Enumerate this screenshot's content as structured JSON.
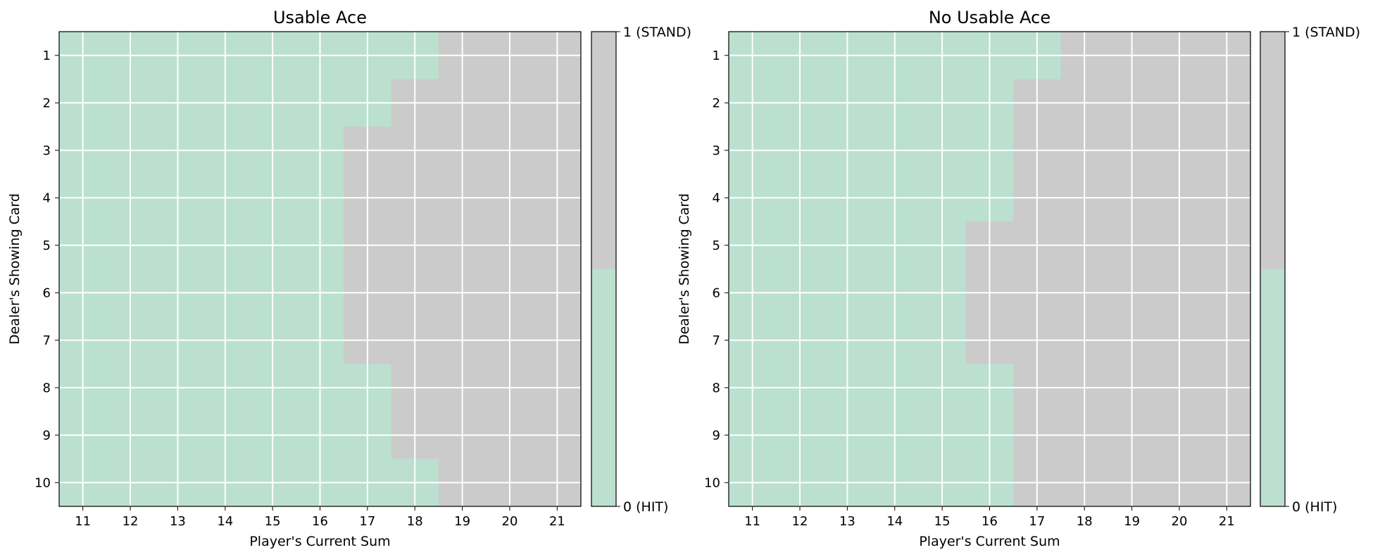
{
  "colors": {
    "hit": "#bbe0cf",
    "stand": "#cbcbcb",
    "grid": "#ffffff",
    "frame": "#000000"
  },
  "chart_data": [
    {
      "type": "heatmap",
      "title": "Usable Ace",
      "xlabel": "Player's Current Sum",
      "ylabel": "Dealer's Showing Card",
      "x": [
        11,
        12,
        13,
        14,
        15,
        16,
        17,
        18,
        19,
        20,
        21
      ],
      "y": [
        1,
        2,
        3,
        4,
        5,
        6,
        7,
        8,
        9,
        10
      ],
      "values": [
        [
          0,
          0,
          0,
          0,
          0,
          0,
          0,
          0,
          1,
          1,
          1
        ],
        [
          0,
          0,
          0,
          0,
          0,
          0,
          0,
          1,
          1,
          1,
          1
        ],
        [
          0,
          0,
          0,
          0,
          0,
          0,
          1,
          1,
          1,
          1,
          1
        ],
        [
          0,
          0,
          0,
          0,
          0,
          0,
          1,
          1,
          1,
          1,
          1
        ],
        [
          0,
          0,
          0,
          0,
          0,
          0,
          1,
          1,
          1,
          1,
          1
        ],
        [
          0,
          0,
          0,
          0,
          0,
          0,
          1,
          1,
          1,
          1,
          1
        ],
        [
          0,
          0,
          0,
          0,
          0,
          0,
          1,
          1,
          1,
          1,
          1
        ],
        [
          0,
          0,
          0,
          0,
          0,
          0,
          0,
          1,
          1,
          1,
          1
        ],
        [
          0,
          0,
          0,
          0,
          0,
          0,
          0,
          1,
          1,
          1,
          1
        ],
        [
          0,
          0,
          0,
          0,
          0,
          0,
          0,
          0,
          1,
          1,
          1
        ]
      ],
      "colorbar": {
        "max_label": "1 (STAND)",
        "min_label": "0 (HIT)"
      },
      "grid": true
    },
    {
      "type": "heatmap",
      "title": "No Usable Ace",
      "xlabel": "Player's Current Sum",
      "ylabel": "Dealer's Showing Card",
      "x": [
        11,
        12,
        13,
        14,
        15,
        16,
        17,
        18,
        19,
        20,
        21
      ],
      "y": [
        1,
        2,
        3,
        4,
        5,
        6,
        7,
        8,
        9,
        10
      ],
      "values": [
        [
          0,
          0,
          0,
          0,
          0,
          0,
          0,
          1,
          1,
          1,
          1
        ],
        [
          0,
          0,
          0,
          0,
          0,
          0,
          1,
          1,
          1,
          1,
          1
        ],
        [
          0,
          0,
          0,
          0,
          0,
          0,
          1,
          1,
          1,
          1,
          1
        ],
        [
          0,
          0,
          0,
          0,
          0,
          0,
          1,
          1,
          1,
          1,
          1
        ],
        [
          0,
          0,
          0,
          0,
          0,
          1,
          1,
          1,
          1,
          1,
          1
        ],
        [
          0,
          0,
          0,
          0,
          0,
          1,
          1,
          1,
          1,
          1,
          1
        ],
        [
          0,
          0,
          0,
          0,
          0,
          1,
          1,
          1,
          1,
          1,
          1
        ],
        [
          0,
          0,
          0,
          0,
          0,
          0,
          1,
          1,
          1,
          1,
          1
        ],
        [
          0,
          0,
          0,
          0,
          0,
          0,
          1,
          1,
          1,
          1,
          1
        ],
        [
          0,
          0,
          0,
          0,
          0,
          0,
          1,
          1,
          1,
          1,
          1
        ]
      ],
      "colorbar": {
        "max_label": "1 (STAND)",
        "min_label": "0 (HIT)"
      },
      "grid": true
    }
  ]
}
